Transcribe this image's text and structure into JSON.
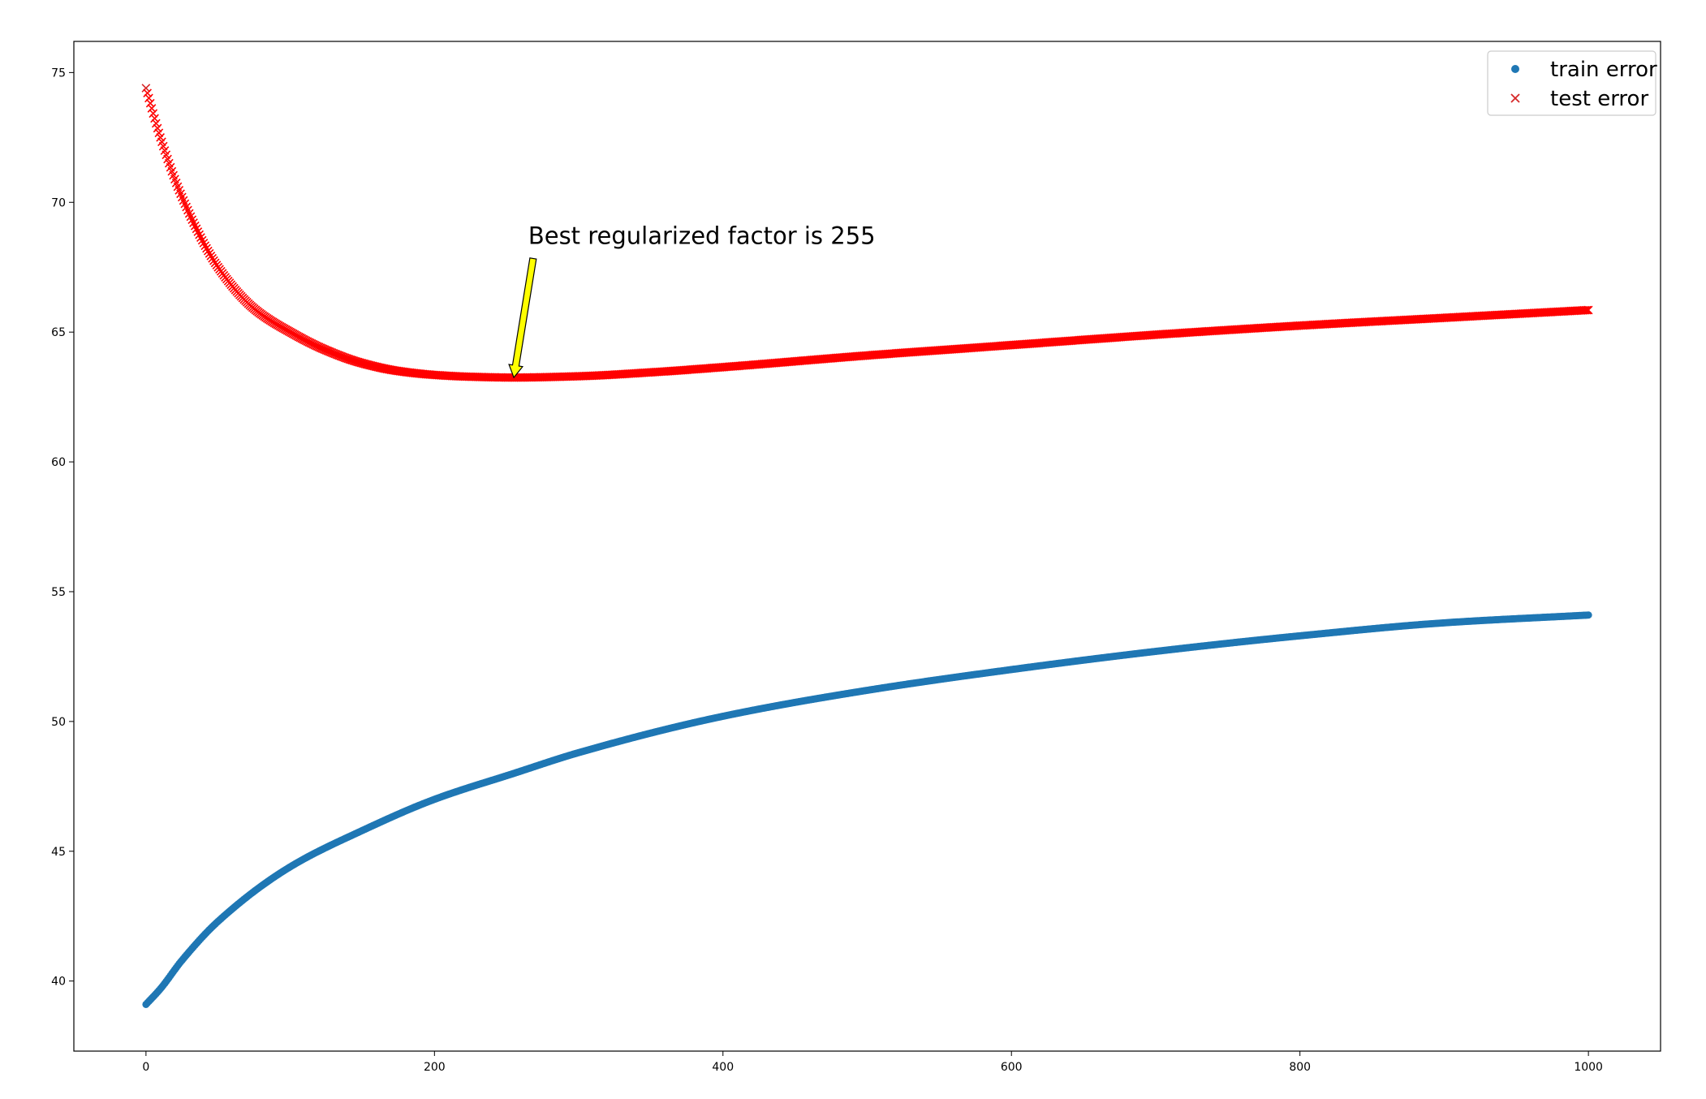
{
  "chart_data": {
    "type": "scatter",
    "title": "",
    "xlabel": "",
    "ylabel": "",
    "xlim": [
      -50,
      1050
    ],
    "ylim": [
      37.3,
      76.2
    ],
    "grid": false,
    "legend_position": "top-right",
    "x_ticks": [
      0,
      200,
      400,
      600,
      800,
      1000
    ],
    "y_ticks": [
      40,
      45,
      50,
      55,
      60,
      65,
      70,
      75
    ],
    "x": {
      "start": 0,
      "end": 1000,
      "step": 1
    },
    "series": [
      {
        "name": "train error",
        "marker": "circle",
        "color": "#1f77b4",
        "control_points": [
          [
            0,
            39.1
          ],
          [
            10,
            39.7
          ],
          [
            25,
            40.8
          ],
          [
            50,
            42.3
          ],
          [
            100,
            44.4
          ],
          [
            150,
            45.8
          ],
          [
            200,
            47.0
          ],
          [
            255,
            48.0
          ],
          [
            300,
            48.8
          ],
          [
            400,
            50.2
          ],
          [
            500,
            51.2
          ],
          [
            600,
            52.0
          ],
          [
            700,
            52.7
          ],
          [
            800,
            53.3
          ],
          [
            900,
            53.8
          ],
          [
            1000,
            54.1
          ]
        ]
      },
      {
        "name": "test error",
        "marker": "x",
        "color": "#ff0000",
        "first_marker_color": "#d62728",
        "control_points": [
          [
            0,
            74.4
          ],
          [
            10,
            72.5
          ],
          [
            25,
            70.2
          ],
          [
            50,
            67.5
          ],
          [
            75,
            65.9
          ],
          [
            100,
            65.0
          ],
          [
            125,
            64.3
          ],
          [
            150,
            63.8
          ],
          [
            175,
            63.5
          ],
          [
            200,
            63.35
          ],
          [
            225,
            63.28
          ],
          [
            255,
            63.25
          ],
          [
            300,
            63.3
          ],
          [
            350,
            63.45
          ],
          [
            400,
            63.65
          ],
          [
            500,
            64.1
          ],
          [
            600,
            64.5
          ],
          [
            700,
            64.9
          ],
          [
            800,
            65.25
          ],
          [
            900,
            65.55
          ],
          [
            1000,
            65.85
          ]
        ]
      }
    ],
    "annotation": {
      "text": "Best regularized factor is 255",
      "xy": [
        255,
        63.25
      ],
      "xytext": [
        265,
        68.4
      ],
      "arrow_color": "#ffff00"
    }
  }
}
